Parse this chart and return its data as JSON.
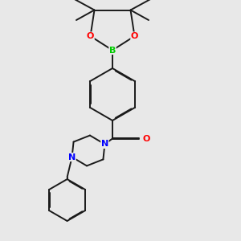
{
  "bg_color": "#e8e8e8",
  "bond_color": "#1a1a1a",
  "N_color": "#0000ff",
  "O_color": "#ff0000",
  "B_color": "#00cc00",
  "lw": 1.4,
  "dbo": 0.018,
  "figsize": [
    3.0,
    3.0
  ],
  "dpi": 100,
  "xlim": [
    -1.8,
    2.2
  ],
  "ylim": [
    -3.2,
    2.8
  ]
}
